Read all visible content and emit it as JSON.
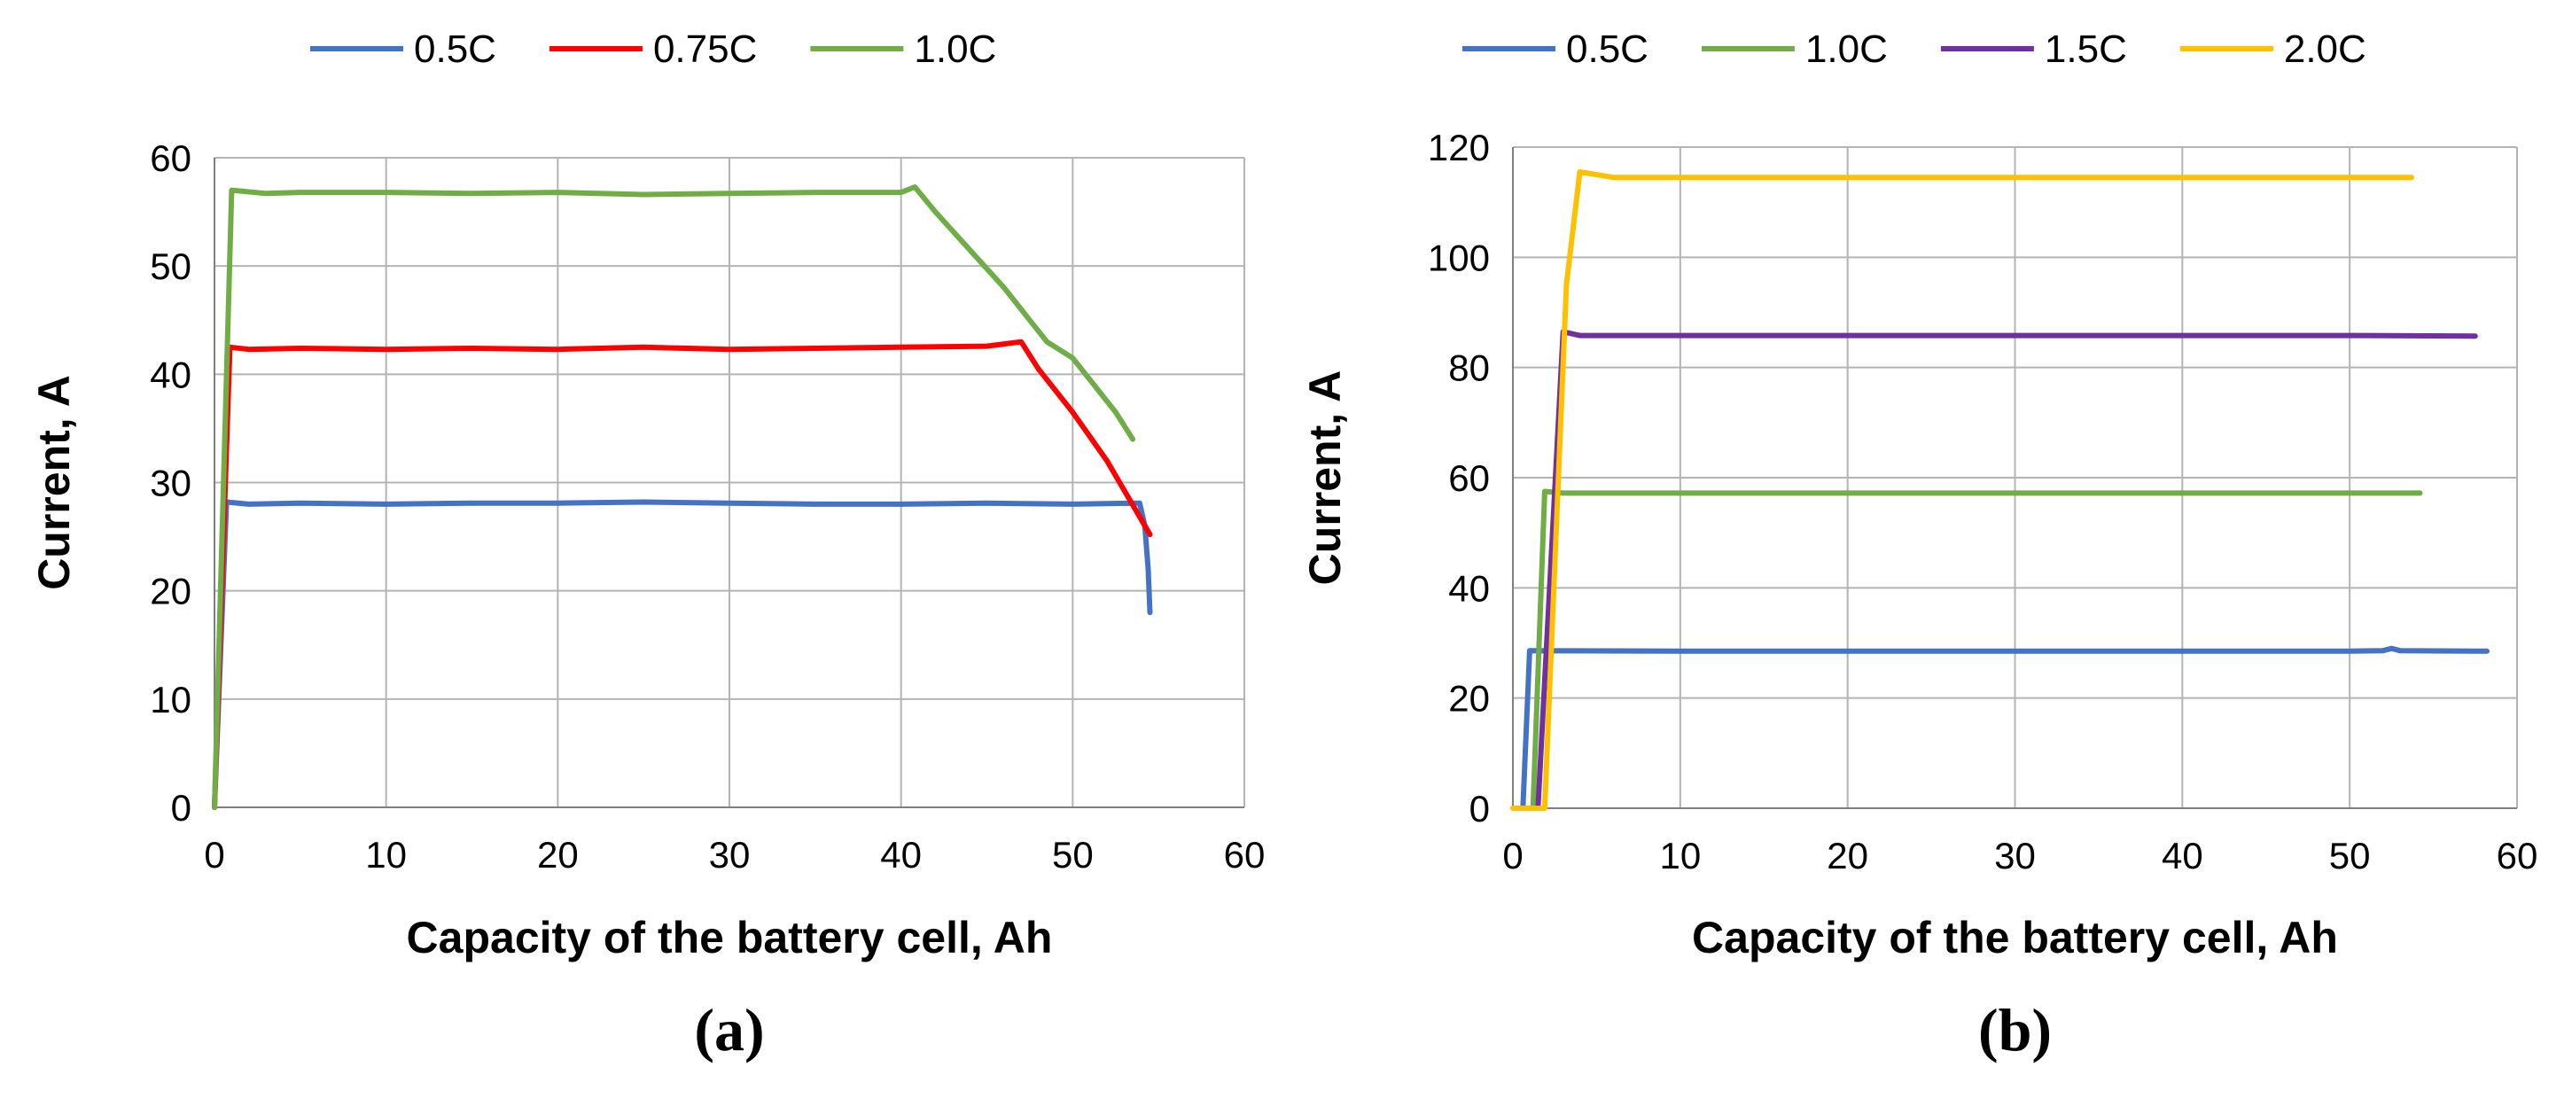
{
  "chart_data": [
    {
      "type": "line",
      "panel_label": "(a)",
      "xlabel": "Capacity of the battery cell, Ah",
      "ylabel": "Current, A",
      "xlim": [
        0,
        60
      ],
      "ylim": [
        0,
        60
      ],
      "xticks": [
        0,
        10,
        20,
        30,
        40,
        50,
        60
      ],
      "yticks": [
        0,
        10,
        20,
        30,
        40,
        50,
        60
      ],
      "grid": true,
      "legend": "top",
      "series": [
        {
          "name": "0.5C",
          "color": "#4472c4",
          "points": [
            [
              0,
              0
            ],
            [
              0.7,
              28.2
            ],
            [
              2,
              28.0
            ],
            [
              5,
              28.1
            ],
            [
              10,
              28.0
            ],
            [
              15,
              28.1
            ],
            [
              20,
              28.1
            ],
            [
              25,
              28.2
            ],
            [
              30,
              28.1
            ],
            [
              35,
              28.0
            ],
            [
              40,
              28.0
            ],
            [
              45,
              28.1
            ],
            [
              50,
              28.0
            ],
            [
              53.9,
              28.1
            ],
            [
              54.2,
              26.0
            ],
            [
              54.4,
              22.0
            ],
            [
              54.5,
              18.0
            ]
          ]
        },
        {
          "name": "0.75C",
          "color": "#ff0000",
          "points": [
            [
              0,
              0
            ],
            [
              0.9,
              42.5
            ],
            [
              2,
              42.3
            ],
            [
              5,
              42.4
            ],
            [
              10,
              42.3
            ],
            [
              15,
              42.4
            ],
            [
              20,
              42.3
            ],
            [
              25,
              42.5
            ],
            [
              30,
              42.3
            ],
            [
              35,
              42.4
            ],
            [
              40,
              42.5
            ],
            [
              45,
              42.6
            ],
            [
              47,
              43.0
            ],
            [
              48,
              40.5
            ],
            [
              50,
              36.5
            ],
            [
              52,
              32.0
            ],
            [
              54.5,
              25.2
            ]
          ]
        },
        {
          "name": "1.0C",
          "color": "#70ad47",
          "points": [
            [
              0,
              0
            ],
            [
              1,
              57.0
            ],
            [
              3,
              56.7
            ],
            [
              5,
              56.8
            ],
            [
              10,
              56.8
            ],
            [
              15,
              56.7
            ],
            [
              20,
              56.8
            ],
            [
              25,
              56.6
            ],
            [
              30,
              56.7
            ],
            [
              35,
              56.8
            ],
            [
              40,
              56.8
            ],
            [
              40.8,
              57.3
            ],
            [
              42,
              55.0
            ],
            [
              44,
              51.5
            ],
            [
              46,
              48.0
            ],
            [
              47.5,
              45.0
            ],
            [
              48.5,
              43.0
            ],
            [
              50,
              41.5
            ],
            [
              51,
              39.5
            ],
            [
              52.5,
              36.5
            ],
            [
              53.5,
              34.0
            ]
          ]
        }
      ]
    },
    {
      "type": "line",
      "panel_label": "(b)",
      "xlabel": "Capacity of the battery cell, Ah",
      "ylabel": "Current, A",
      "xlim": [
        0,
        60
      ],
      "ylim": [
        0,
        120
      ],
      "xticks": [
        0,
        10,
        20,
        30,
        40,
        50,
        60
      ],
      "yticks": [
        0,
        20,
        40,
        60,
        80,
        100,
        120
      ],
      "grid": true,
      "legend": "top",
      "series": [
        {
          "name": "0.5C",
          "color": "#4472c4",
          "points": [
            [
              0.6,
              0
            ],
            [
              1.0,
              28.6
            ],
            [
              10,
              28.5
            ],
            [
              20,
              28.5
            ],
            [
              30,
              28.5
            ],
            [
              40,
              28.5
            ],
            [
              50,
              28.5
            ],
            [
              52,
              28.6
            ],
            [
              52.5,
              29.0
            ],
            [
              53,
              28.6
            ],
            [
              58.2,
              28.5
            ]
          ]
        },
        {
          "name": "1.0C",
          "color": "#70ad47",
          "points": [
            [
              1.2,
              0
            ],
            [
              1.9,
              57.5
            ],
            [
              3,
              57.2
            ],
            [
              10,
              57.2
            ],
            [
              20,
              57.2
            ],
            [
              30,
              57.2
            ],
            [
              40,
              57.2
            ],
            [
              50,
              57.2
            ],
            [
              54.2,
              57.2
            ]
          ]
        },
        {
          "name": "1.5C",
          "color": "#7030a0",
          "points": [
            [
              1.5,
              0
            ],
            [
              3.0,
              86.5
            ],
            [
              4,
              85.8
            ],
            [
              10,
              85.8
            ],
            [
              20,
              85.8
            ],
            [
              30,
              85.8
            ],
            [
              40,
              85.8
            ],
            [
              50,
              85.8
            ],
            [
              57.5,
              85.7
            ]
          ]
        },
        {
          "name": "2.0C",
          "color": "#ffc000",
          "points": [
            [
              0,
              0
            ],
            [
              1.9,
              0
            ],
            [
              3.2,
              95
            ],
            [
              4.0,
              115.5
            ],
            [
              5,
              115.0
            ],
            [
              6,
              114.5
            ],
            [
              10,
              114.5
            ],
            [
              20,
              114.5
            ],
            [
              30,
              114.5
            ],
            [
              40,
              114.5
            ],
            [
              50,
              114.5
            ],
            [
              53.7,
              114.5
            ]
          ]
        }
      ]
    }
  ]
}
